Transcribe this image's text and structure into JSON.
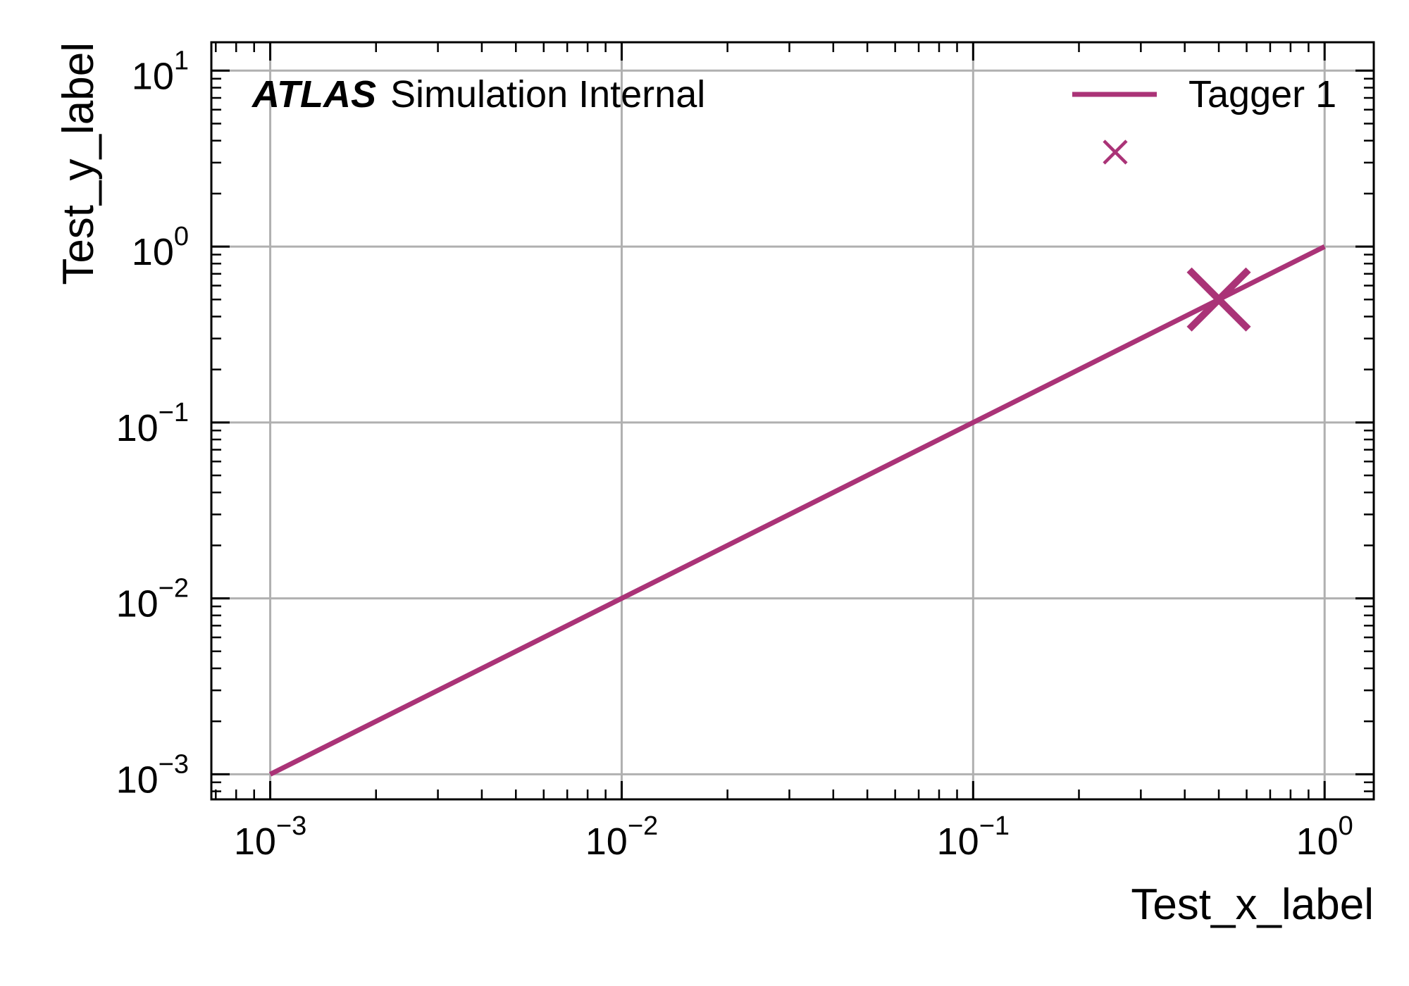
{
  "chart_data": {
    "type": "line",
    "xscale": "log",
    "yscale": "log",
    "xlabel": "Test_x_label",
    "ylabel": "Test_y_label",
    "xlim": [
      0.00068,
      1.38
    ],
    "ylim": [
      0.00072,
      14.5
    ],
    "grid": true,
    "x_ticks": [
      {
        "value": 0.001,
        "base": "10",
        "exp": "−3"
      },
      {
        "value": 0.01,
        "base": "10",
        "exp": "−2"
      },
      {
        "value": 0.1,
        "base": "10",
        "exp": "−1"
      },
      {
        "value": 1,
        "base": "10",
        "exp": "0"
      }
    ],
    "y_ticks": [
      {
        "value": 0.001,
        "base": "10",
        "exp": "−3"
      },
      {
        "value": 0.01,
        "base": "10",
        "exp": "−2"
      },
      {
        "value": 0.1,
        "base": "10",
        "exp": "−1"
      },
      {
        "value": 1,
        "base": "10",
        "exp": "0"
      },
      {
        "value": 10,
        "base": "10",
        "exp": "1"
      }
    ],
    "series": [
      {
        "name": "Tagger 1",
        "kind": "line",
        "x": [
          0.001,
          1
        ],
        "y": [
          0.001,
          1
        ],
        "color": "#AA3377"
      },
      {
        "name": "",
        "kind": "marker",
        "marker": "x",
        "x": [
          0.5
        ],
        "y": [
          0.5
        ],
        "color": "#AA3377"
      }
    ],
    "legend": {
      "position": "top-right",
      "entries": [
        "Tagger 1",
        ""
      ]
    },
    "annotation": {
      "bold_italic": "ATLAS",
      "text": "Simulation Internal",
      "position": "top-left"
    }
  }
}
